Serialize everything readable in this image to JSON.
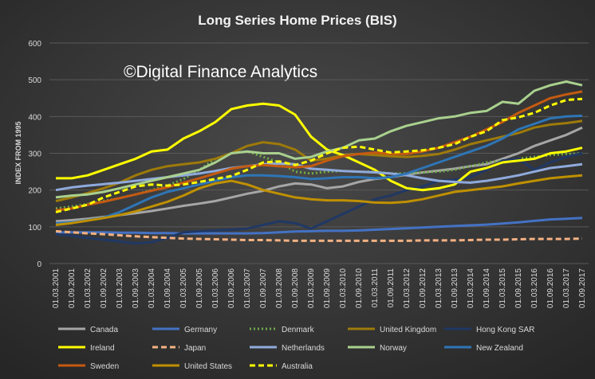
{
  "chart_data": {
    "type": "line",
    "title": "Long Series Home Prices (BIS)",
    "annotation": "©Digital Finance Analytics",
    "y_label": "INDEX FROM 1995",
    "categories": [
      "01.03.2001",
      "01.09.2001",
      "01.03.2002",
      "01.09.2002",
      "01.03.2003",
      "01.09.2003",
      "01.03.2004",
      "01.09.2004",
      "01.03.2005",
      "01.09.2005",
      "01.03.2006",
      "01.09.2006",
      "01.03.2007",
      "01.09.2007",
      "01.03.2008",
      "01.09.2008",
      "01.03.2009",
      "01.09.2009",
      "01.03.2010",
      "01.09.2010",
      "01.03.2011",
      "01.09.2011",
      "01.03.2012",
      "01.09.2012",
      "01.03.2013",
      "01.09.2013",
      "01.03.2014",
      "01.09.2014",
      "01.03.2015",
      "01.09.2015",
      "01.03.2016",
      "01.09.2016",
      "01.03.2017",
      "01.09.2017"
    ],
    "ylim": [
      0,
      600
    ],
    "yticks": [
      0,
      100,
      200,
      300,
      400,
      500,
      600
    ],
    "grid": true,
    "legend": "bottom",
    "series": [
      {
        "name": "Canada",
        "color": "#a6a6a6",
        "style": "solid",
        "values": [
          115,
          118,
          122,
          127,
          132,
          137,
          143,
          150,
          157,
          163,
          170,
          180,
          190,
          198,
          210,
          218,
          215,
          205,
          210,
          222,
          230,
          235,
          242,
          248,
          253,
          258,
          265,
          270,
          285,
          300,
          320,
          335,
          350,
          370
        ]
      },
      {
        "name": "Germany",
        "color": "#4472c4",
        "style": "solid",
        "values": [
          85,
          85,
          85,
          85,
          84,
          84,
          83,
          83,
          82,
          82,
          82,
          82,
          82,
          83,
          85,
          87,
          88,
          89,
          89,
          90,
          92,
          94,
          96,
          98,
          100,
          102,
          104,
          106,
          109,
          112,
          116,
          120,
          122,
          124
        ]
      },
      {
        "name": "Denmark",
        "color": "#70ad47",
        "style": "dotted",
        "values": [
          150,
          155,
          162,
          170,
          178,
          188,
          200,
          212,
          230,
          255,
          285,
          300,
          305,
          290,
          275,
          250,
          245,
          250,
          252,
          250,
          250,
          245,
          245,
          248,
          250,
          255,
          265,
          275,
          280,
          285,
          290,
          295,
          298,
          300
        ]
      },
      {
        "name": "United Kingdom",
        "color": "#9e7a0a",
        "style": "solid",
        "values": [
          170,
          180,
          192,
          205,
          220,
          240,
          255,
          265,
          270,
          275,
          285,
          300,
          320,
          330,
          325,
          310,
          280,
          285,
          295,
          298,
          295,
          292,
          290,
          293,
          298,
          310,
          325,
          335,
          345,
          355,
          370,
          378,
          382,
          388
        ]
      },
      {
        "name": "Hong Kong SAR",
        "color": "#203864",
        "style": "solid",
        "values": [
          80,
          75,
          70,
          65,
          60,
          55,
          58,
          70,
          85,
          88,
          90,
          92,
          95,
          105,
          115,
          110,
          95,
          115,
          135,
          155,
          175,
          185,
          200,
          210,
          225,
          228,
          235,
          255,
          280,
          285,
          255,
          275,
          290,
          300
        ]
      },
      {
        "name": "Ireland",
        "color": "#ffff00",
        "style": "solid",
        "values": [
          232,
          232,
          240,
          255,
          270,
          285,
          305,
          310,
          340,
          360,
          385,
          420,
          430,
          435,
          430,
          405,
          345,
          310,
          295,
          275,
          255,
          225,
          205,
          200,
          205,
          215,
          250,
          260,
          275,
          280,
          285,
          300,
          305,
          315
        ]
      },
      {
        "name": "Japan",
        "color": "#f4b183",
        "style": "dashed",
        "values": [
          88,
          85,
          82,
          80,
          77,
          74,
          72,
          70,
          68,
          67,
          66,
          65,
          64,
          64,
          63,
          62,
          62,
          62,
          62,
          62,
          62,
          62,
          62,
          63,
          63,
          63,
          64,
          65,
          65,
          66,
          67,
          67,
          67,
          68
        ]
      },
      {
        "name": "Netherlands",
        "color": "#8faadc",
        "style": "solid",
        "values": [
          200,
          207,
          212,
          216,
          220,
          225,
          230,
          235,
          240,
          245,
          252,
          260,
          265,
          270,
          272,
          270,
          258,
          255,
          252,
          250,
          248,
          245,
          240,
          232,
          225,
          222,
          220,
          225,
          232,
          240,
          250,
          260,
          265,
          270
        ]
      },
      {
        "name": "Norway",
        "color": "#a9d18e",
        "style": "solid",
        "values": [
          180,
          185,
          188,
          195,
          205,
          215,
          225,
          235,
          245,
          255,
          275,
          300,
          305,
          300,
          300,
          285,
          290,
          305,
          315,
          335,
          340,
          360,
          375,
          385,
          395,
          400,
          410,
          415,
          440,
          435,
          470,
          485,
          495,
          485
        ]
      },
      {
        "name": "New Zealand",
        "color": "#2e75b6",
        "style": "solid",
        "values": [
          110,
          112,
          118,
          125,
          140,
          160,
          180,
          195,
          205,
          215,
          225,
          235,
          240,
          240,
          238,
          235,
          230,
          232,
          235,
          235,
          232,
          235,
          245,
          260,
          275,
          290,
          305,
          320,
          340,
          365,
          380,
          395,
          400,
          402
        ]
      },
      {
        "name": "Sweden",
        "color": "#c55a11",
        "style": "solid",
        "values": [
          145,
          150,
          160,
          168,
          178,
          188,
          198,
          208,
          220,
          232,
          245,
          258,
          265,
          268,
          265,
          262,
          265,
          280,
          292,
          298,
          302,
          298,
          298,
          305,
          315,
          330,
          345,
          365,
          385,
          410,
          430,
          450,
          460,
          468
        ]
      },
      {
        "name": "United States",
        "color": "#bf9000",
        "style": "solid",
        "values": [
          105,
          110,
          117,
          124,
          132,
          142,
          155,
          168,
          185,
          205,
          218,
          225,
          215,
          200,
          190,
          180,
          175,
          172,
          172,
          170,
          166,
          165,
          168,
          175,
          185,
          195,
          200,
          205,
          210,
          218,
          225,
          232,
          236,
          240
        ]
      },
      {
        "name": "Australia",
        "color": "#ffff00",
        "style": "dashed",
        "values": [
          140,
          150,
          160,
          180,
          195,
          210,
          215,
          212,
          215,
          222,
          230,
          238,
          255,
          275,
          278,
          268,
          280,
          300,
          315,
          318,
          310,
          302,
          305,
          308,
          315,
          325,
          345,
          360,
          390,
          398,
          410,
          430,
          445,
          448
        ]
      }
    ]
  }
}
